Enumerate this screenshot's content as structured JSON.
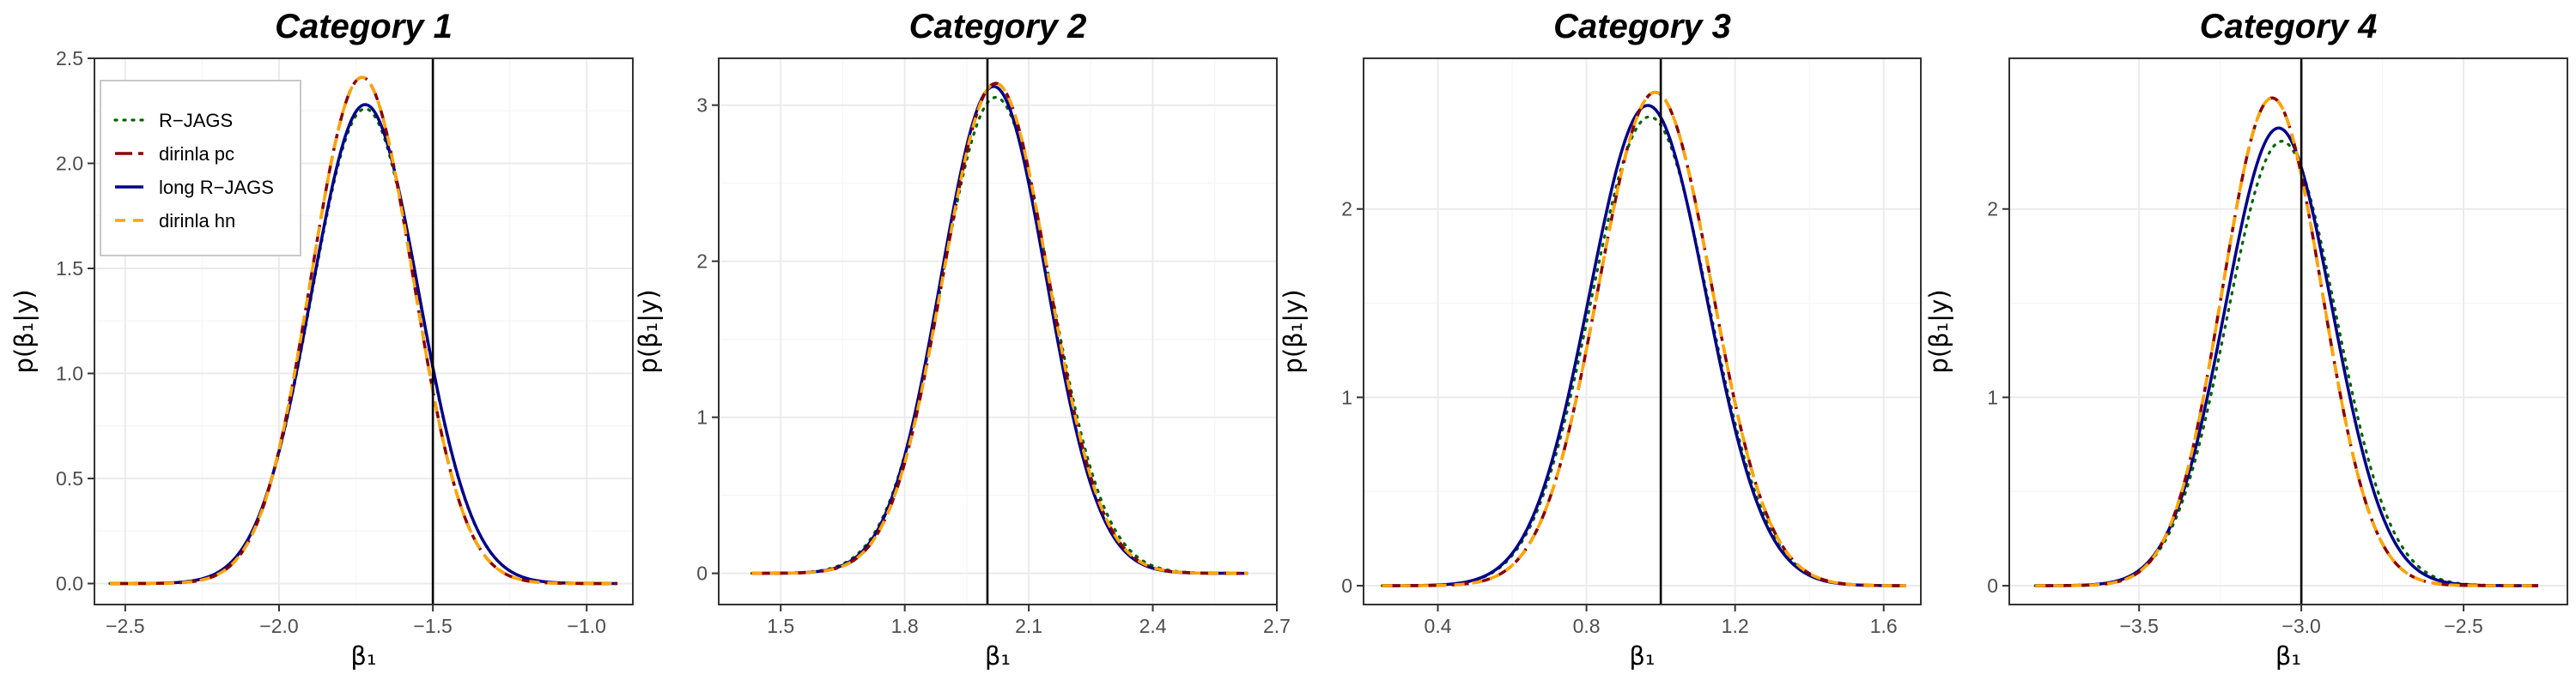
{
  "chart_data": [
    {
      "type": "line",
      "title": "Category 1",
      "xlabel": "β₁",
      "ylabel": "p(β₁|y)",
      "xlim": [
        -2.6,
        -0.85
      ],
      "ylim": [
        -0.1,
        2.5
      ],
      "xticks": [
        -2.5,
        -2.0,
        -1.5,
        -1.0
      ],
      "xtick_labels": [
        "−2.5",
        "−2.0",
        "−1.5",
        "−1.0"
      ],
      "yticks": [
        0.0,
        0.5,
        1.0,
        1.5,
        2.0,
        2.5
      ],
      "ytick_labels": [
        "0.0",
        "0.5",
        "1.0",
        "1.5",
        "2.0",
        "2.5"
      ],
      "true_value": -1.5,
      "x_range": [
        -2.55,
        -0.9
      ],
      "series": [
        {
          "name": "R−JAGS",
          "mean": -1.72,
          "sd": 0.1745,
          "peak": 2.26
        },
        {
          "name": "dirinla pc",
          "mean": -1.73,
          "sd": 0.1655,
          "peak": 2.41
        },
        {
          "name": "long R−JAGS",
          "mean": -1.72,
          "sd": 0.1745,
          "peak": 2.28
        },
        {
          "name": "dirinla hn",
          "mean": -1.73,
          "sd": 0.1655,
          "peak": 2.41
        }
      ],
      "show_legend": true,
      "legend_position": "top-left"
    },
    {
      "type": "line",
      "title": "Category 2",
      "xlabel": "β₁",
      "ylabel": "p(β₁|y)",
      "xlim": [
        1.35,
        2.7
      ],
      "ylim": [
        -0.2,
        3.3
      ],
      "xticks": [
        1.5,
        1.8,
        2.1,
        2.4,
        2.7
      ],
      "xtick_labels": [
        "1.5",
        "1.8",
        "2.1",
        "2.4",
        "2.7"
      ],
      "yticks": [
        0,
        1,
        2,
        3
      ],
      "ytick_labels": [
        "0",
        "1",
        "2",
        "3"
      ],
      "true_value": 2.0,
      "x_range": [
        1.43,
        2.63
      ],
      "series": [
        {
          "name": "R−JAGS",
          "mean": 2.02,
          "sd": 0.132,
          "peak": 3.05
        },
        {
          "name": "dirinla pc",
          "mean": 2.02,
          "sd": 0.1275,
          "peak": 3.14
        },
        {
          "name": "long R−JAGS",
          "mean": 2.015,
          "sd": 0.1275,
          "peak": 3.12
        },
        {
          "name": "dirinla hn",
          "mean": 2.02,
          "sd": 0.1275,
          "peak": 3.14
        }
      ],
      "show_legend": false
    },
    {
      "type": "line",
      "title": "Category 3",
      "xlabel": "β₁",
      "ylabel": "p(β₁|y)",
      "xlim": [
        0.2,
        1.7
      ],
      "ylim": [
        -0.1,
        2.8
      ],
      "xticks": [
        0.4,
        0.8,
        1.2,
        1.6
      ],
      "xtick_labels": [
        "0.4",
        "0.8",
        "1.2",
        "1.6"
      ],
      "yticks": [
        0,
        1,
        2
      ],
      "ytick_labels": [
        "0",
        "1",
        "2"
      ],
      "true_value": 1.0,
      "x_range": [
        0.25,
        1.66
      ],
      "series": [
        {
          "name": "R−JAGS",
          "mean": 0.97,
          "sd": 0.158,
          "peak": 2.49
        },
        {
          "name": "dirinla pc",
          "mean": 0.985,
          "sd": 0.1525,
          "peak": 2.62
        },
        {
          "name": "long R−JAGS",
          "mean": 0.965,
          "sd": 0.157,
          "peak": 2.55
        },
        {
          "name": "dirinla hn",
          "mean": 0.985,
          "sd": 0.1525,
          "peak": 2.62
        }
      ],
      "show_legend": false
    },
    {
      "type": "line",
      "title": "Category 4",
      "xlabel": "β₁",
      "ylabel": "p(β₁|y)",
      "xlim": [
        -3.9,
        -2.18
      ],
      "ylim": [
        -0.1,
        2.8
      ],
      "xticks": [
        -3.5,
        -3.0,
        -2.5
      ],
      "xtick_labels": [
        "−3.5",
        "−3.0",
        "−2.5"
      ],
      "yticks": [
        0,
        1,
        2
      ],
      "ytick_labels": [
        "0",
        "1",
        "2"
      ],
      "true_value": -3.0,
      "x_range": [
        -3.82,
        -2.27
      ],
      "series": [
        {
          "name": "R−JAGS",
          "mean": -3.06,
          "sd": 0.168,
          "peak": 2.36
        },
        {
          "name": "dirinla pc",
          "mean": -3.09,
          "sd": 0.1535,
          "peak": 2.59
        },
        {
          "name": "long R−JAGS",
          "mean": -3.07,
          "sd": 0.165,
          "peak": 2.43
        },
        {
          "name": "dirinla hn",
          "mean": -3.09,
          "sd": 0.1535,
          "peak": 2.59
        }
      ],
      "show_legend": false
    }
  ],
  "legend": [
    {
      "label": "R−JAGS",
      "color": "#006400",
      "dash": "dotted"
    },
    {
      "label": "dirinla pc",
      "color": "#8B0000",
      "dash": "longdash"
    },
    {
      "label": "long R−JAGS",
      "color": "#00008B",
      "dash": "solid"
    },
    {
      "label": "dirinla hn",
      "color": "#FFA500",
      "dash": "dashed"
    }
  ],
  "colors": {
    "panel_border": "#333333",
    "grid_major": "#ebebeb",
    "grid_minor": "#f5f5f5",
    "true_value_line": "#000000"
  }
}
